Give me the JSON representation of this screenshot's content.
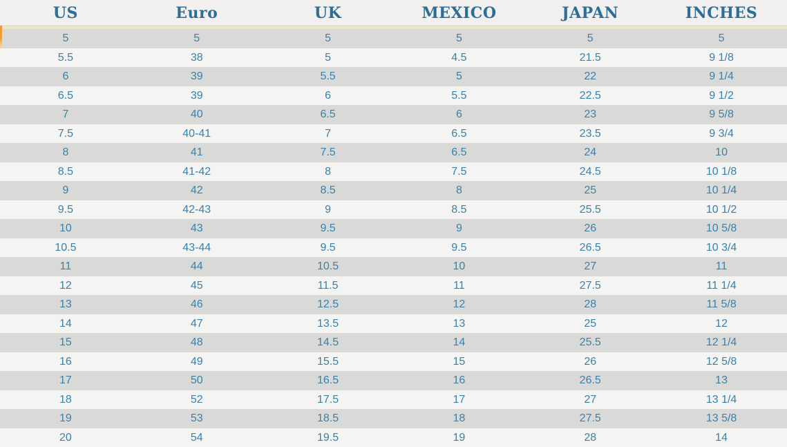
{
  "chart_data": {
    "type": "table",
    "columns": [
      "US",
      "Euro",
      "UK",
      "MEXICO",
      "JAPAN",
      "INCHES"
    ],
    "rows": [
      [
        "5",
        "5",
        "5",
        "5",
        "5",
        "5"
      ],
      [
        "5.5",
        "38",
        "5",
        "4.5",
        "21.5",
        "9 1/8"
      ],
      [
        "6",
        "39",
        "5.5",
        "5",
        "22",
        "9 1/4"
      ],
      [
        "6.5",
        "39",
        "6",
        "5.5",
        "22.5",
        "9 1/2"
      ],
      [
        "7",
        "40",
        "6.5",
        "6",
        "23",
        "9 5/8"
      ],
      [
        "7.5",
        "40-41",
        "7",
        "6.5",
        "23.5",
        "9 3/4"
      ],
      [
        "8",
        "41",
        "7.5",
        "6.5",
        "24",
        "10"
      ],
      [
        "8.5",
        "41-42",
        "8",
        "7.5",
        "24.5",
        "10 1/8"
      ],
      [
        "9",
        "42",
        "8.5",
        "8",
        "25",
        "10 1/4"
      ],
      [
        "9.5",
        "42-43",
        "9",
        "8.5",
        "25.5",
        "10 1/2"
      ],
      [
        "10",
        "43",
        "9.5",
        "9",
        "26",
        "10 5/8"
      ],
      [
        "10.5",
        "43-44",
        "9.5",
        "9.5",
        "26.5",
        "10 3/4"
      ],
      [
        "11",
        "44",
        "10.5",
        "10",
        "27",
        "11"
      ],
      [
        "12",
        "45",
        "11.5",
        "11",
        "27.5",
        "11 1/4"
      ],
      [
        "13",
        "46",
        "12.5",
        "12",
        "28",
        "11 5/8"
      ],
      [
        "14",
        "47",
        "13.5",
        "13",
        "25",
        "12"
      ],
      [
        "15",
        "48",
        "14.5",
        "14",
        "25.5",
        "12 1/4"
      ],
      [
        "16",
        "49",
        "15.5",
        "15",
        "26",
        "12 5/8"
      ],
      [
        "17",
        "50",
        "16.5",
        "16",
        "26.5",
        "13"
      ],
      [
        "18",
        "52",
        "17.5",
        "17",
        "27",
        "13 1/4"
      ],
      [
        "19",
        "53",
        "18.5",
        "18",
        "27.5",
        "13 5/8"
      ],
      [
        "20",
        "54",
        "19.5",
        "19",
        "28",
        "14"
      ]
    ],
    "row_striping": true,
    "grid": false
  },
  "colors": {
    "header_text": "#2e6d94",
    "cell_text": "#3a80a9",
    "row_odd": "#d9d9d7",
    "row_even": "#f4f4f2",
    "header_bg": "#f1f0ee",
    "separator": "#ece8c6",
    "separator_edge": "#dcd6ae",
    "accent_left": "#e99d3c"
  }
}
